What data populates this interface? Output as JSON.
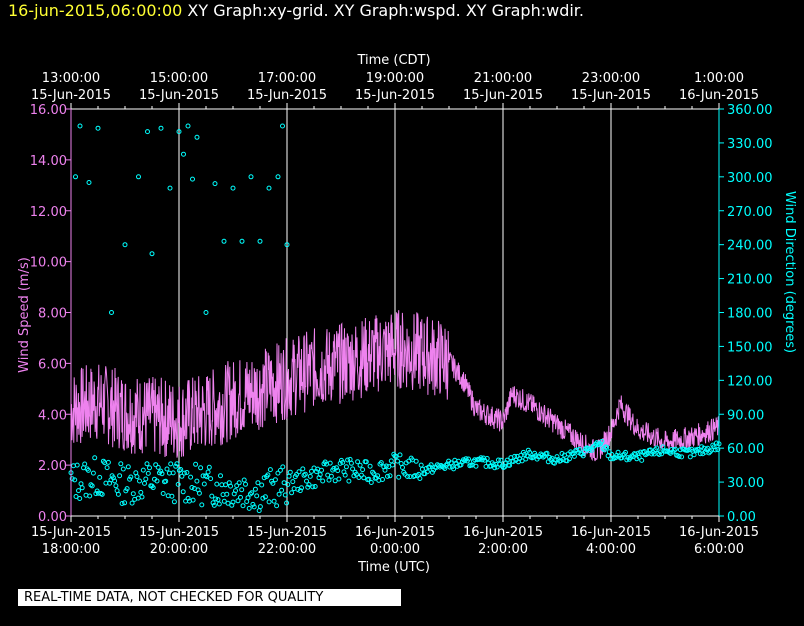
{
  "header": {
    "timestamp": "16-jun-2015,06:00:00",
    "graphs": [
      "XY Graph:xy-grid.",
      "XY Graph:wspd.",
      "XY Graph:wdir."
    ]
  },
  "quality_note": "REAL-TIME DATA, NOT CHECKED FOR QUALITY",
  "colors": {
    "background": "#000000",
    "axis_white": "#ffffff",
    "wind_speed": "#ee82ee",
    "wind_direction": "#00ffff",
    "timestamp": "#ffff33"
  },
  "chart_data": {
    "type": "line",
    "top_axis": {
      "label": "Time (CDT)",
      "ticks": [
        {
          "time": "13:00:00",
          "date": "15-Jun-2015"
        },
        {
          "time": "15:00:00",
          "date": "15-Jun-2015"
        },
        {
          "time": "17:00:00",
          "date": "15-Jun-2015"
        },
        {
          "time": "19:00:00",
          "date": "15-Jun-2015"
        },
        {
          "time": "21:00:00",
          "date": "15-Jun-2015"
        },
        {
          "time": "23:00:00",
          "date": "15-Jun-2015"
        },
        {
          "time": "1:00:00",
          "date": "16-Jun-2015"
        }
      ]
    },
    "bottom_axis": {
      "label": "Time (UTC)",
      "ticks": [
        {
          "date": "15-Jun-2015",
          "time": "18:00:00"
        },
        {
          "date": "15-Jun-2015",
          "time": "20:00:00"
        },
        {
          "date": "15-Jun-2015",
          "time": "22:00:00"
        },
        {
          "date": "16-Jun-2015",
          "time": "0:00:00"
        },
        {
          "date": "16-Jun-2015",
          "time": "2:00:00"
        },
        {
          "date": "16-Jun-2015",
          "time": "4:00:00"
        },
        {
          "date": "16-Jun-2015",
          "time": "6:00:00"
        }
      ],
      "xlim": [
        "2015-06-15 18:00 UTC",
        "2015-06-16 06:00 UTC"
      ]
    },
    "y_left": {
      "label": "Wind Speed (m/s)",
      "ylim": [
        0,
        16
      ],
      "ticks": [
        "0.00",
        "2.00",
        "4.00",
        "6.00",
        "8.00",
        "10.00",
        "12.00",
        "14.00",
        "16.00"
      ]
    },
    "y_right": {
      "label": "Wind Direction (degrees)",
      "ylim": [
        0,
        360
      ],
      "ticks": [
        "0.00",
        "30.00",
        "60.00",
        "90.00",
        "120.00",
        "150.00",
        "180.00",
        "210.00",
        "240.00",
        "270.00",
        "300.00",
        "330.00",
        "360.00"
      ]
    },
    "grid": "vertical lines at labeled UTC ticks",
    "series": [
      {
        "name": "Wind Speed",
        "axis": "left",
        "style": "line",
        "points": [
          [
            "18:00",
            4.2
          ],
          [
            "18:30",
            4.5
          ],
          [
            "19:00",
            4.1
          ],
          [
            "19:30",
            3.9
          ],
          [
            "20:00",
            3.8
          ],
          [
            "20:30",
            4.1
          ],
          [
            "21:00",
            4.6
          ],
          [
            "21:30",
            5.0
          ],
          [
            "22:00",
            5.4
          ],
          [
            "22:30",
            5.8
          ],
          [
            "23:00",
            6.0
          ],
          [
            "23:30",
            6.3
          ],
          [
            "0:00",
            6.6
          ],
          [
            "0:30",
            6.4
          ],
          [
            "1:00",
            6.1
          ],
          [
            "1:15",
            5.4
          ],
          [
            "1:30",
            4.2
          ],
          [
            "2:00",
            3.7
          ],
          [
            "2:10",
            4.8
          ],
          [
            "2:30",
            4.4
          ],
          [
            "3:00",
            3.6
          ],
          [
            "3:30",
            2.8
          ],
          [
            "3:45",
            2.5
          ],
          [
            "4:00",
            3.3
          ],
          [
            "4:10",
            4.4
          ],
          [
            "4:30",
            3.4
          ],
          [
            "5:00",
            2.9
          ],
          [
            "5:30",
            3.1
          ],
          [
            "6:00",
            3.5
          ]
        ]
      },
      {
        "name": "Wind Direction",
        "axis": "right",
        "style": "markers",
        "points": [
          [
            "18:00",
            30
          ],
          [
            "18:30",
            35
          ],
          [
            "19:00",
            28
          ],
          [
            "19:30",
            32
          ],
          [
            "20:00",
            30
          ],
          [
            "20:30",
            27
          ],
          [
            "21:00",
            25
          ],
          [
            "21:30",
            22
          ],
          [
            "22:00",
            28
          ],
          [
            "22:30",
            35
          ],
          [
            "23:00",
            42
          ],
          [
            "23:30",
            38
          ],
          [
            "0:00",
            45
          ],
          [
            "0:30",
            40
          ],
          [
            "1:00",
            45
          ],
          [
            "1:30",
            48
          ],
          [
            "2:00",
            46
          ],
          [
            "2:30",
            55
          ],
          [
            "3:00",
            50
          ],
          [
            "3:30",
            57
          ],
          [
            "3:50",
            63
          ],
          [
            "4:00",
            53
          ],
          [
            "4:30",
            52
          ],
          [
            "5:00",
            58
          ],
          [
            "5:30",
            55
          ],
          [
            "6:00",
            62
          ]
        ],
        "scatter_points": [
          [
            "18:05",
            300
          ],
          [
            "18:10",
            345
          ],
          [
            "18:20",
            295
          ],
          [
            "18:30",
            343
          ],
          [
            "18:45",
            180
          ],
          [
            "19:00",
            240
          ],
          [
            "19:15",
            300
          ],
          [
            "19:25",
            340
          ],
          [
            "19:30",
            232
          ],
          [
            "19:40",
            343
          ],
          [
            "19:50",
            290
          ],
          [
            "20:00",
            340
          ],
          [
            "20:05",
            320
          ],
          [
            "20:10",
            345
          ],
          [
            "20:15",
            298
          ],
          [
            "20:20",
            335
          ],
          [
            "20:30",
            180
          ],
          [
            "20:40",
            294
          ],
          [
            "20:50",
            243
          ],
          [
            "21:00",
            290
          ],
          [
            "21:10",
            243
          ],
          [
            "21:20",
            300
          ],
          [
            "21:30",
            243
          ],
          [
            "21:40",
            290
          ],
          [
            "21:50",
            300
          ],
          [
            "21:55",
            345
          ],
          [
            "22:00",
            240
          ]
        ]
      }
    ]
  }
}
